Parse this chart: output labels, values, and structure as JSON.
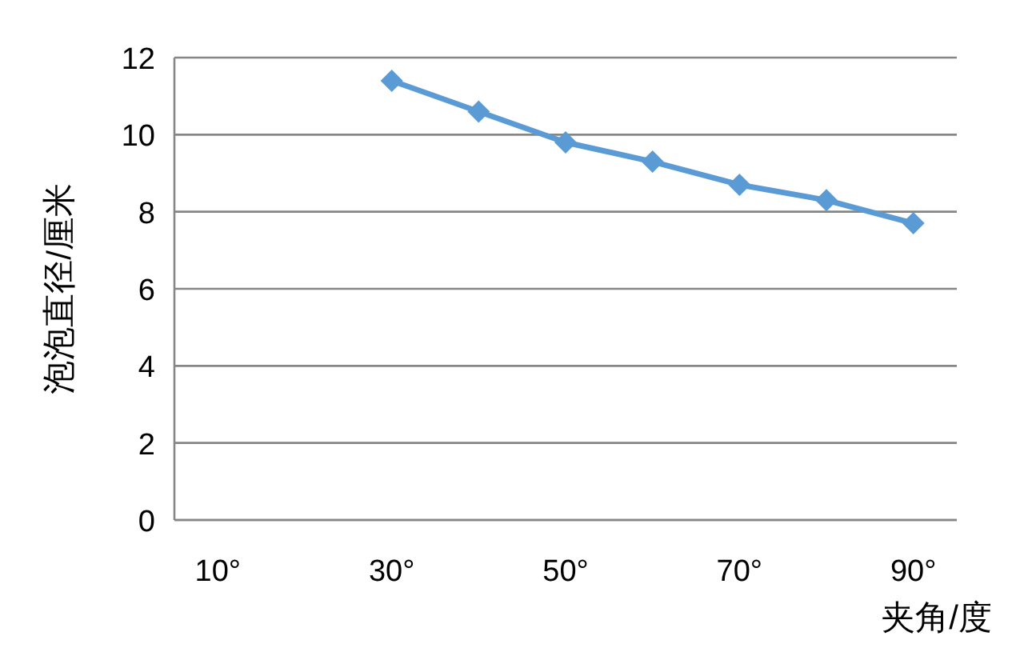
{
  "chart_data": {
    "type": "line",
    "xlabel": "夹角/度",
    "ylabel": "泡泡直径/厘米",
    "x": [
      30,
      40,
      50,
      60,
      70,
      80,
      90
    ],
    "series": [
      {
        "color": "#5b9bd5",
        "values": [
          11.4,
          10.6,
          9.8,
          9.3,
          8.7,
          8.3,
          7.7
        ]
      }
    ],
    "xlim": [
      5,
      95
    ],
    "xticks": [
      {
        "value": 10,
        "label": "10°"
      },
      {
        "value": 30,
        "label": "30°"
      },
      {
        "value": 50,
        "label": "50°"
      },
      {
        "value": 70,
        "label": "70°"
      },
      {
        "value": 90,
        "label": "90°"
      }
    ],
    "ylim": [
      0,
      12
    ],
    "yticks": [
      0,
      2,
      4,
      6,
      8,
      10,
      12
    ],
    "grid": "y",
    "marker": "diamond",
    "line_style": "solid"
  }
}
